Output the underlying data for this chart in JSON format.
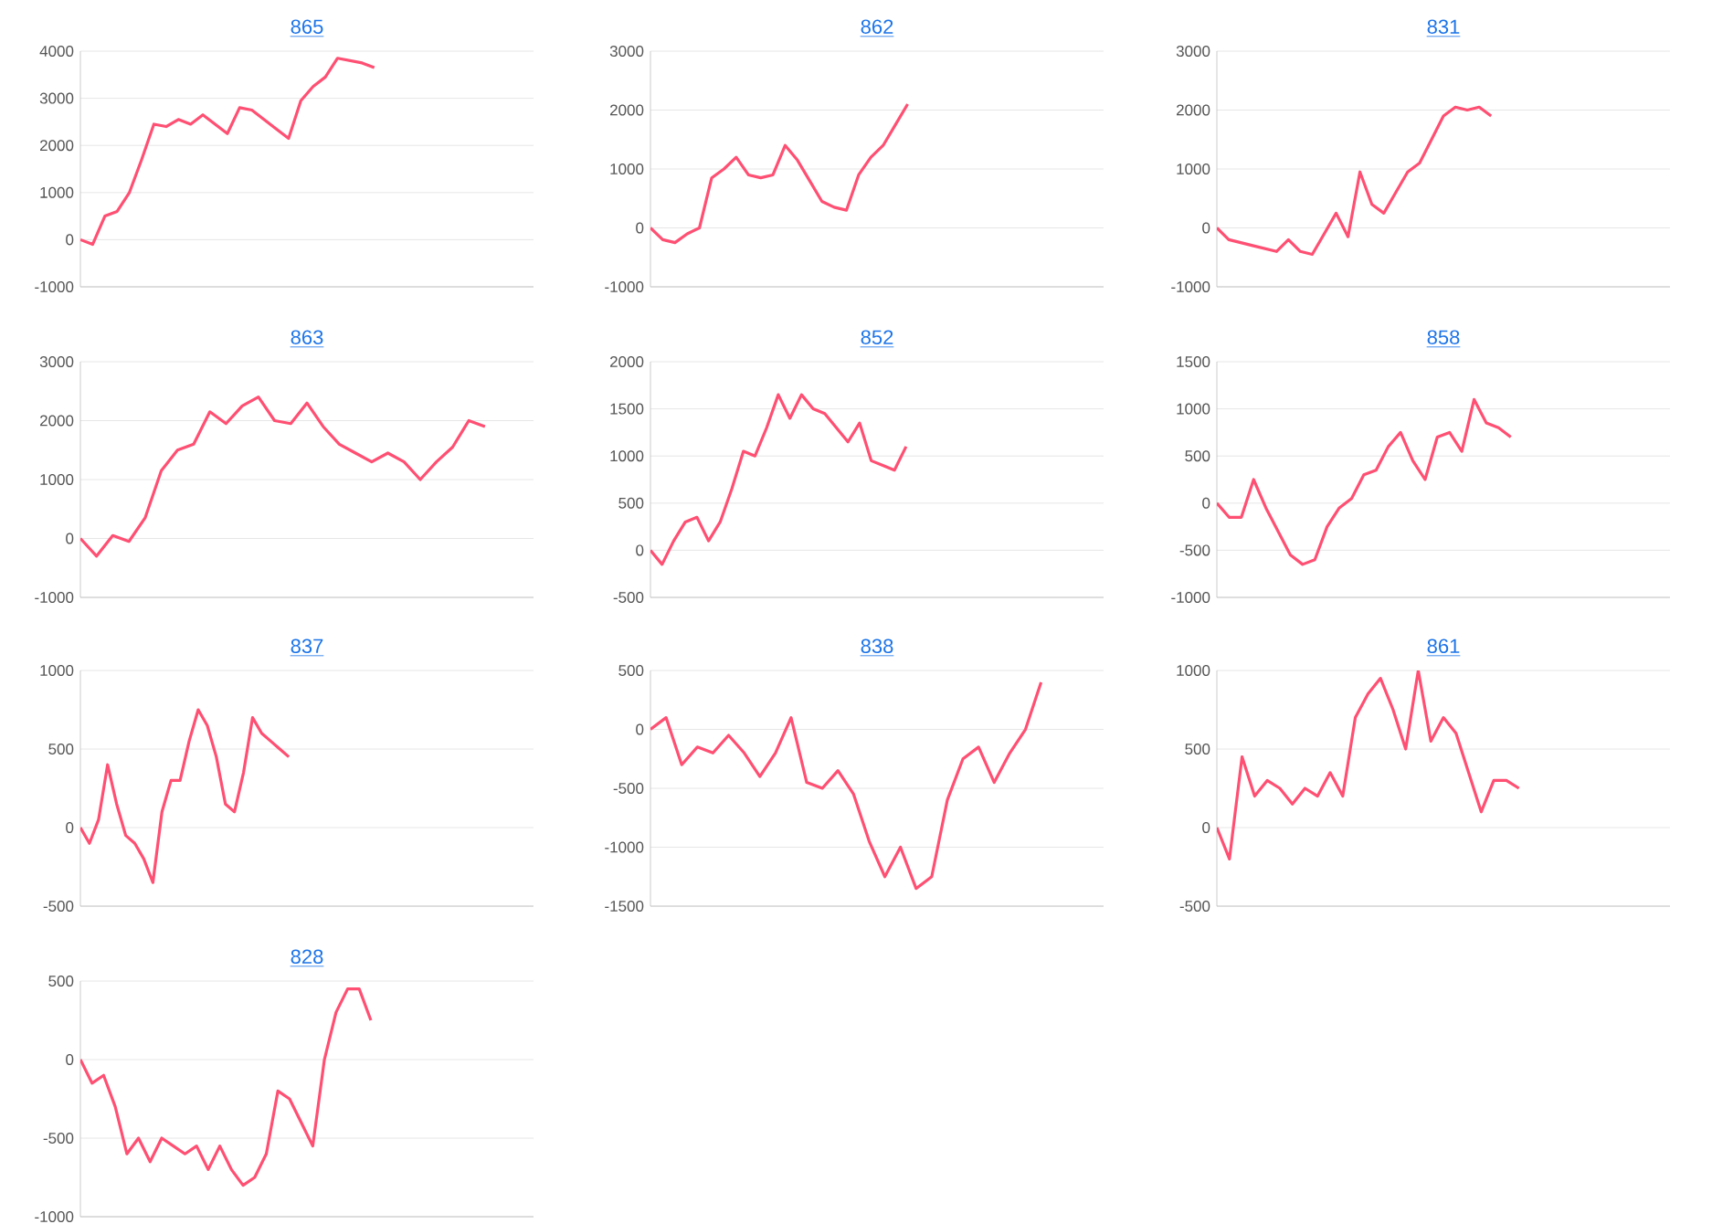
{
  "chart_data": [
    {
      "type": "line",
      "title": "865",
      "categories": [
        null,
        null,
        null,
        null,
        null,
        null,
        null,
        null,
        null,
        null,
        null,
        null,
        null,
        null,
        null,
        null,
        null,
        null,
        null,
        null,
        null,
        null,
        null,
        null,
        null,
        null,
        null,
        null,
        null,
        null,
        null,
        null,
        null,
        null,
        null,
        null,
        null,
        null
      ],
      "values": [
        0,
        -100,
        500,
        600,
        1000,
        1700,
        2450,
        2400,
        2550,
        2450,
        2650,
        2450,
        2250,
        2800,
        2750,
        2550,
        2350,
        2150,
        2950,
        3250,
        3450,
        3850,
        3800,
        3750,
        3650,
        null,
        null,
        null,
        null,
        null,
        null,
        null,
        null,
        null,
        null,
        null,
        null,
        null
      ],
      "color": "#ff4f72",
      "ylim": [
        -1000,
        4000
      ],
      "yticks": [
        -1000,
        0,
        1000,
        2000,
        3000,
        4000
      ],
      "grid": "y",
      "tick_labels": "y"
    },
    {
      "type": "line",
      "title": "862",
      "categories": [
        null,
        null,
        null,
        null,
        null,
        null,
        null,
        null,
        null,
        null,
        null,
        null,
        null,
        null,
        null,
        null,
        null,
        null,
        null,
        null,
        null,
        null,
        null,
        null,
        null,
        null,
        null,
        null,
        null,
        null,
        null,
        null,
        null,
        null,
        null,
        null,
        null,
        null
      ],
      "values": [
        0,
        -200,
        -250,
        -100,
        0,
        850,
        1000,
        1200,
        900,
        850,
        900,
        1400,
        1150,
        800,
        450,
        350,
        300,
        900,
        1200,
        1400,
        1750,
        2100,
        null,
        null,
        null,
        null,
        null,
        null,
        null,
        null,
        null,
        null,
        null,
        null,
        null,
        null,
        null,
        null
      ],
      "color": "#ff4f72",
      "ylim": [
        -1000,
        3000
      ],
      "yticks": [
        -1000,
        0,
        1000,
        2000,
        3000
      ],
      "grid": "y",
      "tick_labels": "y"
    },
    {
      "type": "line",
      "title": "831",
      "categories": [
        null,
        null,
        null,
        null,
        null,
        null,
        null,
        null,
        null,
        null,
        null,
        null,
        null,
        null,
        null,
        null,
        null,
        null,
        null,
        null,
        null,
        null,
        null,
        null,
        null,
        null,
        null,
        null,
        null,
        null,
        null,
        null,
        null,
        null,
        null,
        null,
        null,
        null,
        null
      ],
      "values": [
        0,
        -200,
        -250,
        -300,
        -350,
        -400,
        -200,
        -400,
        -450,
        -100,
        250,
        -150,
        950,
        400,
        250,
        600,
        950,
        1100,
        1500,
        1900,
        2050,
        2000,
        2050,
        1900,
        null,
        null,
        null,
        null,
        null,
        null,
        null,
        null,
        null,
        null,
        null,
        null,
        null,
        null,
        null
      ],
      "color": "#ff4f72",
      "ylim": [
        -1000,
        3000
      ],
      "yticks": [
        -1000,
        0,
        1000,
        2000,
        3000
      ],
      "grid": "y",
      "tick_labels": "y"
    },
    {
      "type": "line",
      "title": "863",
      "categories": [
        null,
        null,
        null,
        null,
        null,
        null,
        null,
        null,
        null,
        null,
        null,
        null,
        null,
        null,
        null,
        null,
        null,
        null,
        null,
        null,
        null,
        null,
        null,
        null,
        null,
        null,
        null,
        null,
        null
      ],
      "values": [
        0,
        -300,
        50,
        -50,
        350,
        1150,
        1500,
        1600,
        2150,
        1950,
        2250,
        2400,
        2000,
        1950,
        2300,
        1900,
        1600,
        1450,
        1300,
        1450,
        1300,
        1000,
        1300,
        1550,
        2000,
        1900,
        null,
        null,
        null
      ],
      "color": "#ff4f72",
      "ylim": [
        -1000,
        3000
      ],
      "yticks": [
        -1000,
        0,
        1000,
        2000,
        3000
      ],
      "grid": "y",
      "tick_labels": "y"
    },
    {
      "type": "line",
      "title": "852",
      "categories": [
        null,
        null,
        null,
        null,
        null,
        null,
        null,
        null,
        null,
        null,
        null,
        null,
        null,
        null,
        null,
        null,
        null,
        null,
        null,
        null,
        null,
        null,
        null,
        null,
        null,
        null,
        null,
        null,
        null,
        null,
        null,
        null,
        null,
        null,
        null,
        null,
        null,
        null,
        null,
        null
      ],
      "values": [
        0,
        -150,
        100,
        300,
        350,
        100,
        300,
        650,
        1050,
        1000,
        1300,
        1650,
        1400,
        1650,
        1500,
        1450,
        1300,
        1150,
        1350,
        950,
        900,
        850,
        1100,
        null,
        null,
        null,
        null,
        null,
        null,
        null,
        null,
        null,
        null,
        null,
        null,
        null,
        null,
        null,
        null,
        null
      ],
      "color": "#ff4f72",
      "ylim": [
        -500,
        2000
      ],
      "yticks": [
        -500,
        0,
        500,
        1000,
        1500,
        2000
      ],
      "grid": "y",
      "tick_labels": "y"
    },
    {
      "type": "line",
      "title": "858",
      "categories": [
        null,
        null,
        null,
        null,
        null,
        null,
        null,
        null,
        null,
        null,
        null,
        null,
        null,
        null,
        null,
        null,
        null,
        null,
        null,
        null,
        null,
        null,
        null,
        null,
        null,
        null,
        null,
        null,
        null,
        null,
        null,
        null,
        null,
        null,
        null,
        null,
        null,
        null
      ],
      "values": [
        0,
        -150,
        -150,
        250,
        -50,
        -300,
        -550,
        -650,
        -600,
        -250,
        -50,
        50,
        300,
        350,
        600,
        750,
        450,
        250,
        700,
        750,
        550,
        1100,
        850,
        800,
        700,
        null,
        null,
        null,
        null,
        null,
        null,
        null,
        null,
        null,
        null,
        null,
        null,
        null
      ],
      "color": "#ff4f72",
      "ylim": [
        -1000,
        1500
      ],
      "yticks": [
        -1000,
        -500,
        0,
        500,
        1000,
        1500
      ],
      "grid": "y",
      "tick_labels": "y"
    },
    {
      "type": "line",
      "title": "837",
      "categories": [
        null,
        null,
        null,
        null,
        null,
        null,
        null,
        null,
        null,
        null,
        null,
        null,
        null,
        null,
        null,
        null,
        null,
        null,
        null,
        null,
        null,
        null,
        null,
        null,
        null,
        null,
        null,
        null,
        null,
        null,
        null,
        null,
        null,
        null,
        null,
        null,
        null,
        null,
        null,
        null,
        null,
        null,
        null,
        null,
        null,
        null,
        null,
        null,
        null,
        null,
        null
      ],
      "values": [
        0,
        -100,
        50,
        400,
        150,
        -50,
        -100,
        -200,
        -350,
        100,
        300,
        300,
        550,
        750,
        650,
        450,
        150,
        100,
        350,
        700,
        600,
        550,
        500,
        450,
        null,
        null,
        null,
        null,
        null,
        null,
        null,
        null,
        null,
        null,
        null,
        null,
        null,
        null,
        null,
        null,
        null,
        null,
        null,
        null,
        null,
        null,
        null,
        null,
        null,
        null,
        null
      ],
      "color": "#ff4f72",
      "ylim": [
        -500,
        1000
      ],
      "yticks": [
        -500,
        0,
        500,
        1000
      ],
      "grid": "y",
      "tick_labels": "y"
    },
    {
      "type": "line",
      "title": "838",
      "categories": [
        null,
        null,
        null,
        null,
        null,
        null,
        null,
        null,
        null,
        null,
        null,
        null,
        null,
        null,
        null,
        null,
        null,
        null,
        null,
        null,
        null,
        null,
        null,
        null,
        null,
        null,
        null,
        null,
        null,
        null
      ],
      "values": [
        0,
        100,
        -300,
        -150,
        -200,
        -50,
        -200,
        -400,
        -200,
        100,
        -450,
        -500,
        -350,
        -550,
        -950,
        -1250,
        -1000,
        -1350,
        -1250,
        -600,
        -250,
        -150,
        -450,
        -200,
        0,
        400,
        null,
        null,
        null,
        null
      ],
      "color": "#ff4f72",
      "ylim": [
        -1500,
        500
      ],
      "yticks": [
        -1500,
        -1000,
        -500,
        0,
        500
      ],
      "grid": "y",
      "tick_labels": "y"
    },
    {
      "type": "line",
      "title": "861",
      "categories": [
        null,
        null,
        null,
        null,
        null,
        null,
        null,
        null,
        null,
        null,
        null,
        null,
        null,
        null,
        null,
        null,
        null,
        null,
        null,
        null,
        null,
        null,
        null,
        null,
        null,
        null,
        null,
        null,
        null,
        null,
        null,
        null,
        null,
        null,
        null,
        null,
        null
      ],
      "values": [
        0,
        -200,
        450,
        200,
        300,
        250,
        150,
        250,
        200,
        350,
        200,
        700,
        850,
        950,
        750,
        500,
        1000,
        550,
        700,
        600,
        350,
        100,
        300,
        300,
        250,
        null,
        null,
        null,
        null,
        null,
        null,
        null,
        null,
        null,
        null,
        null,
        null
      ],
      "color": "#ff4f72",
      "ylim": [
        -500,
        1000
      ],
      "yticks": [
        -500,
        0,
        500,
        1000
      ],
      "grid": "y",
      "tick_labels": "y"
    },
    {
      "type": "line",
      "title": "828",
      "categories": [
        null,
        null,
        null,
        null,
        null,
        null,
        null,
        null,
        null,
        null,
        null,
        null,
        null,
        null,
        null,
        null,
        null,
        null,
        null,
        null,
        null,
        null,
        null,
        null,
        null,
        null,
        null,
        null,
        null,
        null,
        null,
        null,
        null,
        null,
        null,
        null,
        null,
        null,
        null,
        null
      ],
      "values": [
        0,
        -150,
        -100,
        -300,
        -600,
        -500,
        -650,
        -500,
        -550,
        -600,
        -550,
        -700,
        -550,
        -700,
        -800,
        -750,
        -600,
        -200,
        -250,
        -400,
        -550,
        0,
        300,
        450,
        450,
        250,
        null,
        null,
        null,
        null,
        null,
        null,
        null,
        null,
        null,
        null,
        null,
        null,
        null,
        null
      ],
      "color": "#ff4f72",
      "ylim": [
        -1000,
        500
      ],
      "yticks": [
        -1000,
        -500,
        0,
        500
      ],
      "grid": "y",
      "tick_labels": "y"
    }
  ]
}
